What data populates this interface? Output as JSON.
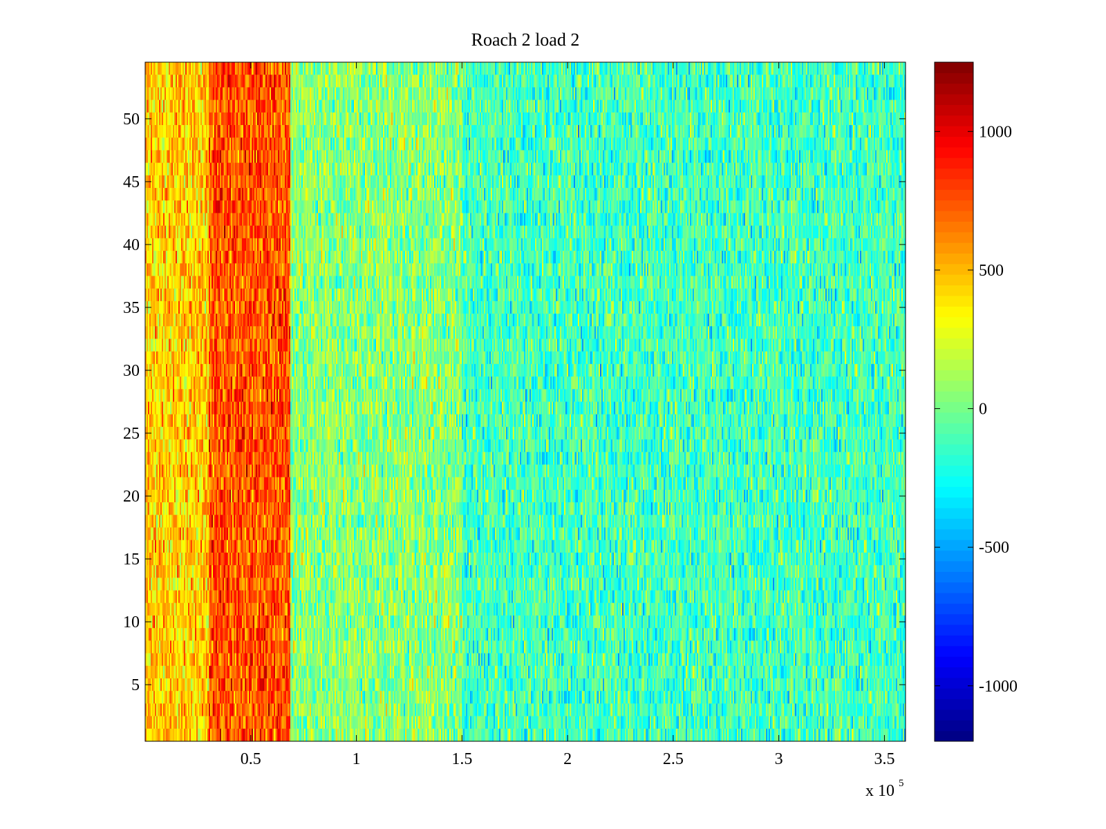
{
  "chart_data": {
    "type": "heatmap",
    "title": "Roach 2 load 2",
    "xlabel": "",
    "ylabel": "",
    "x_multiplier_label": "x 10",
    "x_multiplier_exponent": "5",
    "xlim": [
      0,
      360000
    ],
    "ylim": [
      0.5,
      54.5
    ],
    "x_ticks": [
      50000,
      100000,
      150000,
      200000,
      250000,
      300000,
      350000
    ],
    "x_tick_labels": [
      "0.5",
      "1",
      "1.5",
      "2",
      "2.5",
      "3",
      "3.5"
    ],
    "y_ticks": [
      5,
      10,
      15,
      20,
      25,
      30,
      35,
      40,
      45,
      50
    ],
    "y_tick_labels": [
      "5",
      "10",
      "15",
      "20",
      "25",
      "30",
      "35",
      "40",
      "45",
      "50"
    ],
    "rows": 54,
    "colormap": "jet",
    "clim": [
      -1200,
      1250
    ],
    "colorbar_ticks": [
      1000,
      500,
      0,
      -500,
      -1000
    ],
    "colorbar_tick_labels": [
      "1000",
      "500",
      "0",
      "-500",
      "-1000"
    ],
    "value_profile": [
      {
        "x_from": 0,
        "x_to": 30000,
        "mean": 450
      },
      {
        "x_from": 30000,
        "x_to": 69000,
        "mean": 750
      },
      {
        "x_from": 69000,
        "x_to": 150000,
        "mean": 50
      },
      {
        "x_from": 150000,
        "x_to": 360000,
        "mean": -120
      }
    ],
    "grid": false
  }
}
